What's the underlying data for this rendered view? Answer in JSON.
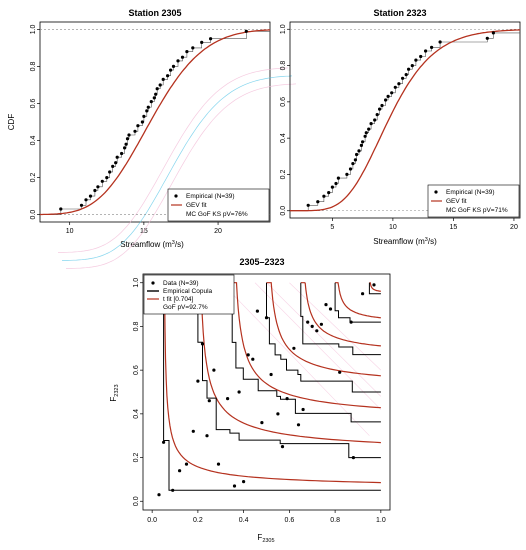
{
  "colors": {
    "fit": "#b5321f",
    "data": "#000000",
    "ref": "#888888",
    "artifact_pink": "#f2b9d6",
    "artifact_cyan": "#5fc8e8"
  },
  "chart_data": [
    {
      "type": "scatter",
      "title": "Station 2305",
      "xlabel": "Streamflow (m",
      "xlabel_sup": "3",
      "xlabel_tail": "/s)",
      "ylabel": "CDF",
      "xlim": [
        8.0,
        23.5
      ],
      "ylim": [
        -0.04,
        1.04
      ],
      "xticks": [
        10,
        15,
        20
      ],
      "yticks": [
        0.0,
        0.2,
        0.4,
        0.6,
        0.8,
        1.0
      ],
      "ytick_labels": [
        "0.0",
        "0.2",
        "0.4",
        "0.6",
        "0.8",
        "1.0"
      ],
      "legend": [
        "Empirical (N=39)",
        "GEV fit",
        "MC GoF KS pV=76%"
      ],
      "legend_position": "bottom-right",
      "gev": {
        "mu": 14.5,
        "sigma": 2.6,
        "xi": -0.2
      },
      "points": [
        {
          "x": 9.4,
          "y": 0.03
        },
        {
          "x": 10.8,
          "y": 0.05
        },
        {
          "x": 11.1,
          "y": 0.08
        },
        {
          "x": 11.4,
          "y": 0.1
        },
        {
          "x": 11.7,
          "y": 0.13
        },
        {
          "x": 11.9,
          "y": 0.15
        },
        {
          "x": 12.2,
          "y": 0.18
        },
        {
          "x": 12.5,
          "y": 0.2
        },
        {
          "x": 12.7,
          "y": 0.23
        },
        {
          "x": 12.9,
          "y": 0.26
        },
        {
          "x": 13.1,
          "y": 0.28
        },
        {
          "x": 13.2,
          "y": 0.31
        },
        {
          "x": 13.5,
          "y": 0.33
        },
        {
          "x": 13.7,
          "y": 0.36
        },
        {
          "x": 13.8,
          "y": 0.38
        },
        {
          "x": 13.9,
          "y": 0.41
        },
        {
          "x": 14.0,
          "y": 0.43
        },
        {
          "x": 14.4,
          "y": 0.45
        },
        {
          "x": 14.6,
          "y": 0.48
        },
        {
          "x": 14.9,
          "y": 0.5
        },
        {
          "x": 15.0,
          "y": 0.53
        },
        {
          "x": 15.2,
          "y": 0.56
        },
        {
          "x": 15.3,
          "y": 0.58
        },
        {
          "x": 15.5,
          "y": 0.61
        },
        {
          "x": 15.7,
          "y": 0.63
        },
        {
          "x": 15.8,
          "y": 0.65
        },
        {
          "x": 15.9,
          "y": 0.68
        },
        {
          "x": 16.1,
          "y": 0.7
        },
        {
          "x": 16.3,
          "y": 0.73
        },
        {
          "x": 16.6,
          "y": 0.75
        },
        {
          "x": 16.8,
          "y": 0.78
        },
        {
          "x": 17.0,
          "y": 0.8
        },
        {
          "x": 17.3,
          "y": 0.83
        },
        {
          "x": 17.6,
          "y": 0.85
        },
        {
          "x": 17.9,
          "y": 0.88
        },
        {
          "x": 18.3,
          "y": 0.9
        },
        {
          "x": 18.9,
          "y": 0.93
        },
        {
          "x": 19.5,
          "y": 0.95
        },
        {
          "x": 21.9,
          "y": 0.99
        }
      ]
    },
    {
      "type": "scatter",
      "title": "Station 2323",
      "xlabel": "Streamflow (m",
      "xlabel_sup": "3",
      "xlabel_tail": "/s)",
      "ylabel": "",
      "xlim": [
        1.5,
        20.5
      ],
      "ylim": [
        -0.04,
        1.04
      ],
      "xticks": [
        5,
        10,
        15,
        20
      ],
      "yticks": [
        0.0,
        0.2,
        0.4,
        0.6,
        0.8,
        1.0
      ],
      "ytick_labels": [
        "0.0",
        "0.2",
        "0.4",
        "0.6",
        "0.8",
        "1.0"
      ],
      "legend": [
        "Empirical (N=39)",
        "GEV fit",
        "MC GoF KS pV=71%"
      ],
      "legend_position": "bottom-right",
      "gev": {
        "mu": 8.7,
        "sigma": 2.6,
        "xi": -0.08
      },
      "points": [
        {
          "x": 3.0,
          "y": 0.03
        },
        {
          "x": 3.8,
          "y": 0.05
        },
        {
          "x": 4.3,
          "y": 0.08
        },
        {
          "x": 4.7,
          "y": 0.1
        },
        {
          "x": 5.0,
          "y": 0.13
        },
        {
          "x": 5.3,
          "y": 0.15
        },
        {
          "x": 5.5,
          "y": 0.18
        },
        {
          "x": 6.2,
          "y": 0.2
        },
        {
          "x": 6.5,
          "y": 0.23
        },
        {
          "x": 6.7,
          "y": 0.26
        },
        {
          "x": 6.9,
          "y": 0.28
        },
        {
          "x": 7.0,
          "y": 0.31
        },
        {
          "x": 7.2,
          "y": 0.33
        },
        {
          "x": 7.4,
          "y": 0.36
        },
        {
          "x": 7.5,
          "y": 0.38
        },
        {
          "x": 7.7,
          "y": 0.41
        },
        {
          "x": 7.8,
          "y": 0.43
        },
        {
          "x": 8.0,
          "y": 0.45
        },
        {
          "x": 8.2,
          "y": 0.48
        },
        {
          "x": 8.5,
          "y": 0.5
        },
        {
          "x": 8.7,
          "y": 0.53
        },
        {
          "x": 8.9,
          "y": 0.56
        },
        {
          "x": 9.1,
          "y": 0.58
        },
        {
          "x": 9.4,
          "y": 0.61
        },
        {
          "x": 9.6,
          "y": 0.63
        },
        {
          "x": 9.9,
          "y": 0.65
        },
        {
          "x": 10.2,
          "y": 0.68
        },
        {
          "x": 10.5,
          "y": 0.7
        },
        {
          "x": 10.8,
          "y": 0.73
        },
        {
          "x": 11.1,
          "y": 0.75
        },
        {
          "x": 11.3,
          "y": 0.78
        },
        {
          "x": 11.6,
          "y": 0.8
        },
        {
          "x": 11.9,
          "y": 0.83
        },
        {
          "x": 12.3,
          "y": 0.85
        },
        {
          "x": 12.7,
          "y": 0.88
        },
        {
          "x": 13.2,
          "y": 0.9
        },
        {
          "x": 13.9,
          "y": 0.93
        },
        {
          "x": 17.8,
          "y": 0.95
        },
        {
          "x": 18.3,
          "y": 0.98
        }
      ]
    },
    {
      "type": "scatter",
      "title": "2305–2323",
      "xlabel": "F",
      "xlabel_sub": "2305",
      "ylabel": "F",
      "ylabel_sub": "2323",
      "xlim": [
        -0.04,
        1.04
      ],
      "ylim": [
        -0.04,
        1.04
      ],
      "xticks": [
        0.0,
        0.2,
        0.4,
        0.6,
        0.8,
        1.0
      ],
      "xtick_labels": [
        "0.0",
        "0.2",
        "0.4",
        "0.6",
        "0.8",
        "1.0"
      ],
      "yticks": [
        0.0,
        0.2,
        0.4,
        0.6,
        0.8,
        1.0
      ],
      "ytick_labels": [
        "0.0",
        "0.2",
        "0.4",
        "0.6",
        "0.8",
        "1.0"
      ],
      "legend": [
        "Data (N=39)",
        "Empirical Copula",
        "t fit [0.704]",
        "GoF pV=92.7%"
      ],
      "legend_position": "top-left",
      "contour_levels": [
        0.05,
        0.2,
        0.35,
        0.5,
        0.65,
        0.8,
        0.95
      ],
      "points": [
        {
          "x": 0.03,
          "y": 0.03
        },
        {
          "x": 0.05,
          "y": 0.27
        },
        {
          "x": 0.09,
          "y": 0.05
        },
        {
          "x": 0.12,
          "y": 0.14
        },
        {
          "x": 0.15,
          "y": 0.17
        },
        {
          "x": 0.18,
          "y": 0.32
        },
        {
          "x": 0.2,
          "y": 0.55
        },
        {
          "x": 0.22,
          "y": 0.72
        },
        {
          "x": 0.24,
          "y": 0.3
        },
        {
          "x": 0.25,
          "y": 0.46
        },
        {
          "x": 0.27,
          "y": 0.6
        },
        {
          "x": 0.29,
          "y": 0.17
        },
        {
          "x": 0.33,
          "y": 0.47
        },
        {
          "x": 0.36,
          "y": 0.07
        },
        {
          "x": 0.38,
          "y": 0.5
        },
        {
          "x": 0.4,
          "y": 0.09
        },
        {
          "x": 0.42,
          "y": 0.67
        },
        {
          "x": 0.44,
          "y": 0.65
        },
        {
          "x": 0.46,
          "y": 0.87
        },
        {
          "x": 0.48,
          "y": 0.36
        },
        {
          "x": 0.5,
          "y": 0.84
        },
        {
          "x": 0.52,
          "y": 0.58
        },
        {
          "x": 0.55,
          "y": 0.4
        },
        {
          "x": 0.57,
          "y": 0.25
        },
        {
          "x": 0.59,
          "y": 0.47
        },
        {
          "x": 0.62,
          "y": 0.7
        },
        {
          "x": 0.64,
          "y": 0.35
        },
        {
          "x": 0.66,
          "y": 0.42
        },
        {
          "x": 0.68,
          "y": 0.82
        },
        {
          "x": 0.7,
          "y": 0.8
        },
        {
          "x": 0.72,
          "y": 0.78
        },
        {
          "x": 0.74,
          "y": 0.81
        },
        {
          "x": 0.76,
          "y": 0.9
        },
        {
          "x": 0.78,
          "y": 0.88
        },
        {
          "x": 0.82,
          "y": 0.59
        },
        {
          "x": 0.87,
          "y": 0.82
        },
        {
          "x": 0.88,
          "y": 0.2
        },
        {
          "x": 0.92,
          "y": 0.95
        },
        {
          "x": 0.97,
          "y": 0.99
        }
      ]
    }
  ]
}
